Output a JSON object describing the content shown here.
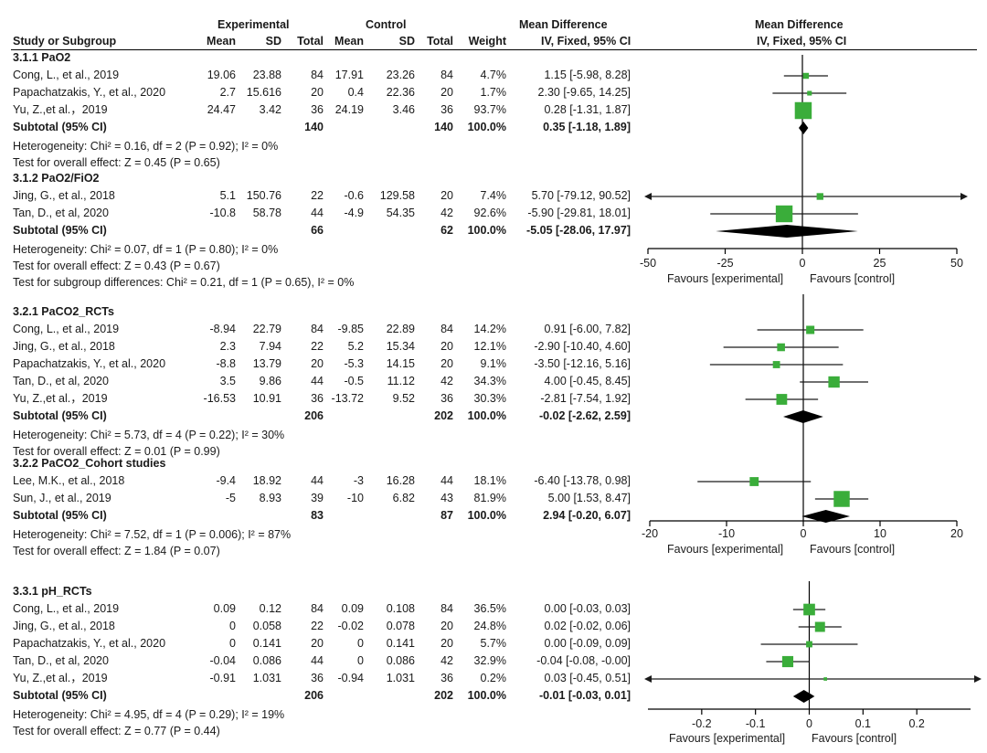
{
  "header": {
    "group_experimental": "Experimental",
    "group_control": "Control",
    "mean_difference": "Mean Difference",
    "mean_difference_plot": "Mean Difference",
    "col_study": "Study or Subgroup",
    "col_mean": "Mean",
    "col_sd": "SD",
    "col_total": "Total",
    "col_weight": "Weight",
    "col_ci": "IV, Fixed, 95% CI",
    "col_ci_plot": "IV, Fixed, 95% CI"
  },
  "colors": {
    "marker": "#3aad3a",
    "diamond": "#000000",
    "line": "#000000",
    "ci": "#1a1a1a"
  },
  "sections": [
    {
      "title": "3.1.1 PaO2",
      "studies": [
        {
          "name": "Cong, L., et al., 2019",
          "em": "19.06",
          "esd": "23.88",
          "et": "84",
          "cm": "17.91",
          "csd": "23.26",
          "ct": "84",
          "w": "4.7%",
          "ci": "1.15 [-5.98, 8.28]",
          "md": 1.15,
          "lo": -5.98,
          "hi": 8.28,
          "wt": 4.7
        },
        {
          "name": "Papachatzakis, Y., et al., 2020",
          "em": "2.7",
          "esd": "15.616",
          "et": "20",
          "cm": "0.4",
          "csd": "22.36",
          "ct": "20",
          "w": "1.7%",
          "ci": "2.30 [-9.65, 14.25]",
          "md": 2.3,
          "lo": -9.65,
          "hi": 14.25,
          "wt": 1.7
        },
        {
          "name": "Yu, Z.,et al.，2019",
          "em": "24.47",
          "esd": "3.42",
          "et": "36",
          "cm": "24.19",
          "csd": "3.46",
          "ct": "36",
          "w": "93.7%",
          "ci": "0.28 [-1.31, 1.87]",
          "md": 0.28,
          "lo": -1.31,
          "hi": 1.87,
          "wt": 93.7
        }
      ],
      "subtotal": {
        "label": "Subtotal (95% CI)",
        "et": "140",
        "ct": "140",
        "w": "100.0%",
        "ci": "0.35 [-1.18, 1.89]",
        "md": 0.35,
        "lo": -1.18,
        "hi": 1.89
      },
      "notes": [
        "Heterogeneity: Chi² = 0.16, df = 2 (P = 0.92); I² = 0%",
        "Test for overall effect: Z = 0.45 (P = 0.65)"
      ]
    },
    {
      "title": "3.1.2 PaO2/FiO2",
      "studies": [
        {
          "name": "Jing, G., et al., 2018",
          "em": "5.1",
          "esd": "150.76",
          "et": "22",
          "cm": "-0.6",
          "csd": "129.58",
          "ct": "20",
          "w": "7.4%",
          "ci": "5.70 [-79.12, 90.52]",
          "md": 5.7,
          "lo": -79.12,
          "hi": 90.52,
          "wt": 7.4
        },
        {
          "name": "Tan, D., et al, 2020",
          "em": "-10.8",
          "esd": "58.78",
          "et": "44",
          "cm": "-4.9",
          "csd": "54.35",
          "ct": "42",
          "w": "92.6%",
          "ci": "-5.90 [-29.81, 18.01]",
          "md": -5.9,
          "lo": -29.81,
          "hi": 18.01,
          "wt": 92.6
        }
      ],
      "subtotal": {
        "label": "Subtotal (95% CI)",
        "et": "66",
        "ct": "62",
        "w": "100.0%",
        "ci": "-5.05 [-28.06, 17.97]",
        "md": -5.05,
        "lo": -28.06,
        "hi": 17.97
      },
      "notes": [
        "Heterogeneity: Chi² = 0.07, df = 1 (P = 0.80); I² = 0%",
        "Test for overall effect: Z = 0.43 (P = 0.67)",
        "Test for subgroup differences: Chi² = 0.21, df = 1 (P = 0.65), I² = 0%"
      ]
    },
    {
      "title": "3.2.1 PaCO2_RCTs",
      "studies": [
        {
          "name": "Cong, L., et al., 2019",
          "em": "-8.94",
          "esd": "22.79",
          "et": "84",
          "cm": "-9.85",
          "csd": "22.89",
          "ct": "84",
          "w": "14.2%",
          "ci": "0.91 [-6.00, 7.82]",
          "md": 0.91,
          "lo": -6.0,
          "hi": 7.82,
          "wt": 14.2
        },
        {
          "name": "Jing, G., et al., 2018",
          "em": "2.3",
          "esd": "7.94",
          "et": "22",
          "cm": "5.2",
          "csd": "15.34",
          "ct": "20",
          "w": "12.1%",
          "ci": "-2.90 [-10.40, 4.60]",
          "md": -2.9,
          "lo": -10.4,
          "hi": 4.6,
          "wt": 12.1
        },
        {
          "name": "Papachatzakis, Y., et al., 2020",
          "em": "-8.8",
          "esd": "13.79",
          "et": "20",
          "cm": "-5.3",
          "csd": "14.15",
          "ct": "20",
          "w": "9.1%",
          "ci": "-3.50 [-12.16, 5.16]",
          "md": -3.5,
          "lo": -12.16,
          "hi": 5.16,
          "wt": 9.1
        },
        {
          "name": "Tan, D., et al, 2020",
          "em": "3.5",
          "esd": "9.86",
          "et": "44",
          "cm": "-0.5",
          "csd": "11.12",
          "ct": "42",
          "w": "34.3%",
          "ci": "4.00 [-0.45, 8.45]",
          "md": 4.0,
          "lo": -0.45,
          "hi": 8.45,
          "wt": 34.3
        },
        {
          "name": "Yu, Z.,et al.，2019",
          "em": "-16.53",
          "esd": "10.91",
          "et": "36",
          "cm": "-13.72",
          "csd": "9.52",
          "ct": "36",
          "w": "30.3%",
          "ci": "-2.81 [-7.54, 1.92]",
          "md": -2.81,
          "lo": -7.54,
          "hi": 1.92,
          "wt": 30.3
        }
      ],
      "subtotal": {
        "label": "Subtotal (95% CI)",
        "et": "206",
        "ct": "202",
        "w": "100.0%",
        "ci": "-0.02 [-2.62, 2.59]",
        "md": -0.02,
        "lo": -2.62,
        "hi": 2.59
      },
      "notes": [
        "Heterogeneity: Chi² = 5.73, df = 4 (P = 0.22); I² = 30%",
        "Test for overall effect: Z = 0.01 (P = 0.99)"
      ]
    },
    {
      "title": "3.2.2 PaCO2_Cohort studies",
      "studies": [
        {
          "name": "Lee, M.K., et al., 2018",
          "em": "-9.4",
          "esd": "18.92",
          "et": "44",
          "cm": "-3",
          "csd": "16.28",
          "ct": "44",
          "w": "18.1%",
          "ci": "-6.40 [-13.78, 0.98]",
          "md": -6.4,
          "lo": -13.78,
          "hi": 0.98,
          "wt": 18.1
        },
        {
          "name": "Sun, J., et al., 2019",
          "em": "-5",
          "esd": "8.93",
          "et": "39",
          "cm": "-10",
          "csd": "6.82",
          "ct": "43",
          "w": "81.9%",
          "ci": "5.00 [1.53, 8.47]",
          "md": 5.0,
          "lo": 1.53,
          "hi": 8.47,
          "wt": 81.9
        }
      ],
      "subtotal": {
        "label": "Subtotal (95% CI)",
        "et": "83",
        "ct": "87",
        "w": "100.0%",
        "ci": "2.94 [-0.20, 6.07]",
        "md": 2.94,
        "lo": -0.2,
        "hi": 6.07
      },
      "notes": [
        "Heterogeneity: Chi² = 7.52, df = 1 (P = 0.006); I² = 87%",
        "Test for overall effect: Z = 1.84 (P = 0.07)"
      ]
    },
    {
      "title": "3.3.1 pH_RCTs",
      "studies": [
        {
          "name": "Cong, L., et al., 2019",
          "em": "0.09",
          "esd": "0.12",
          "et": "84",
          "cm": "0.09",
          "csd": "0.108",
          "ct": "84",
          "w": "36.5%",
          "ci": "0.00 [-0.03, 0.03]",
          "md": 0.0,
          "lo": -0.03,
          "hi": 0.03,
          "wt": 36.5
        },
        {
          "name": "Jing, G., et al., 2018",
          "em": "0",
          "esd": "0.058",
          "et": "22",
          "cm": "-0.02",
          "csd": "0.078",
          "ct": "20",
          "w": "24.8%",
          "ci": "0.02 [-0.02, 0.06]",
          "md": 0.02,
          "lo": -0.02,
          "hi": 0.06,
          "wt": 24.8
        },
        {
          "name": "Papachatzakis, Y., et al., 2020",
          "em": "0",
          "esd": "0.141",
          "et": "20",
          "cm": "0",
          "csd": "0.141",
          "ct": "20",
          "w": "5.7%",
          "ci": "0.00 [-0.09, 0.09]",
          "md": 0.0,
          "lo": -0.09,
          "hi": 0.09,
          "wt": 5.7
        },
        {
          "name": "Tan, D., et al, 2020",
          "em": "-0.04",
          "esd": "0.086",
          "et": "44",
          "cm": "0",
          "csd": "0.086",
          "ct": "42",
          "w": "32.9%",
          "ci": "-0.04 [-0.08, -0.00]",
          "md": -0.04,
          "lo": -0.08,
          "hi": 0.0,
          "wt": 32.9
        },
        {
          "name": "Yu, Z.,et al.，2019",
          "em": "-0.91",
          "esd": "1.031",
          "et": "36",
          "cm": "-0.94",
          "csd": "1.031",
          "ct": "36",
          "w": "0.2%",
          "ci": "0.03 [-0.45, 0.51]",
          "md": 0.03,
          "lo": -0.45,
          "hi": 0.51,
          "wt": 0.2
        }
      ],
      "subtotal": {
        "label": "Subtotal (95% CI)",
        "et": "206",
        "ct": "202",
        "w": "100.0%",
        "ci": "-0.01 [-0.03, 0.01]",
        "md": -0.01,
        "lo": -0.03,
        "hi": 0.01
      },
      "notes": [
        "Heterogeneity: Chi² = 4.95, df = 4 (P = 0.29); I² = 19%",
        "Test for overall effect: Z = 0.77 (P = 0.44)"
      ]
    }
  ],
  "chart_data": [
    {
      "type": "forest",
      "xlim": [
        -50,
        50
      ],
      "ticks": [
        "-50",
        "-25",
        "0",
        "25",
        "50"
      ],
      "tick_values": [
        -50,
        -25,
        0,
        25,
        50
      ],
      "favours_left": "Favours [experimental]",
      "favours_right": "Favours [control]",
      "points": [
        {
          "md": 1.15,
          "lo": -5.98,
          "hi": 8.28,
          "weight": 4.7
        },
        {
          "md": 2.3,
          "lo": -9.65,
          "hi": 14.25,
          "weight": 1.7
        },
        {
          "md": 0.28,
          "lo": -1.31,
          "hi": 1.87,
          "weight": 93.7
        },
        {
          "md": 0.35,
          "lo": -1.18,
          "hi": 1.89,
          "subtotal": true
        },
        {
          "md": 5.7,
          "lo": -79.12,
          "hi": 90.52,
          "weight": 7.4
        },
        {
          "md": -5.9,
          "lo": -29.81,
          "hi": 18.01,
          "weight": 92.6
        },
        {
          "md": -5.05,
          "lo": -28.06,
          "hi": 17.97,
          "subtotal": true
        }
      ]
    },
    {
      "type": "forest",
      "xlim": [
        -20,
        20
      ],
      "ticks": [
        "-20",
        "-10",
        "0",
        "10",
        "20"
      ],
      "tick_values": [
        -20,
        -10,
        0,
        10,
        20
      ],
      "favours_left": "Favours [experimental]",
      "favours_right": "Favours [control]",
      "points": [
        {
          "md": 0.91,
          "lo": -6.0,
          "hi": 7.82,
          "weight": 14.2
        },
        {
          "md": -2.9,
          "lo": -10.4,
          "hi": 4.6,
          "weight": 12.1
        },
        {
          "md": -3.5,
          "lo": -12.16,
          "hi": 5.16,
          "weight": 9.1
        },
        {
          "md": 4.0,
          "lo": -0.45,
          "hi": 8.45,
          "weight": 34.3
        },
        {
          "md": -2.81,
          "lo": -7.54,
          "hi": 1.92,
          "weight": 30.3
        },
        {
          "md": -0.02,
          "lo": -2.62,
          "hi": 2.59,
          "subtotal": true
        },
        {
          "md": -6.4,
          "lo": -13.78,
          "hi": 0.98,
          "weight": 18.1
        },
        {
          "md": 5.0,
          "lo": 1.53,
          "hi": 8.47,
          "weight": 81.9
        },
        {
          "md": 2.94,
          "lo": -0.2,
          "hi": 6.07,
          "subtotal": true
        }
      ]
    },
    {
      "type": "forest",
      "xlim": [
        -0.3,
        0.3
      ],
      "ticks": [
        "-0.2",
        "-0.1",
        "0",
        "0.1",
        "0.2"
      ],
      "tick_values": [
        -0.2,
        -0.1,
        0,
        0.1,
        0.2
      ],
      "favours_left": "Favours [experimental]",
      "favours_right": "Favours [control]",
      "points": [
        {
          "md": 0.0,
          "lo": -0.03,
          "hi": 0.03,
          "weight": 36.5
        },
        {
          "md": 0.02,
          "lo": -0.02,
          "hi": 0.06,
          "weight": 24.8
        },
        {
          "md": 0.0,
          "lo": -0.09,
          "hi": 0.09,
          "weight": 5.7
        },
        {
          "md": -0.04,
          "lo": -0.08,
          "hi": 0.0,
          "weight": 32.9
        },
        {
          "md": 0.03,
          "lo": -0.45,
          "hi": 0.51,
          "weight": 0.2
        },
        {
          "md": -0.01,
          "lo": -0.03,
          "hi": 0.01,
          "subtotal": true
        }
      ]
    }
  ]
}
